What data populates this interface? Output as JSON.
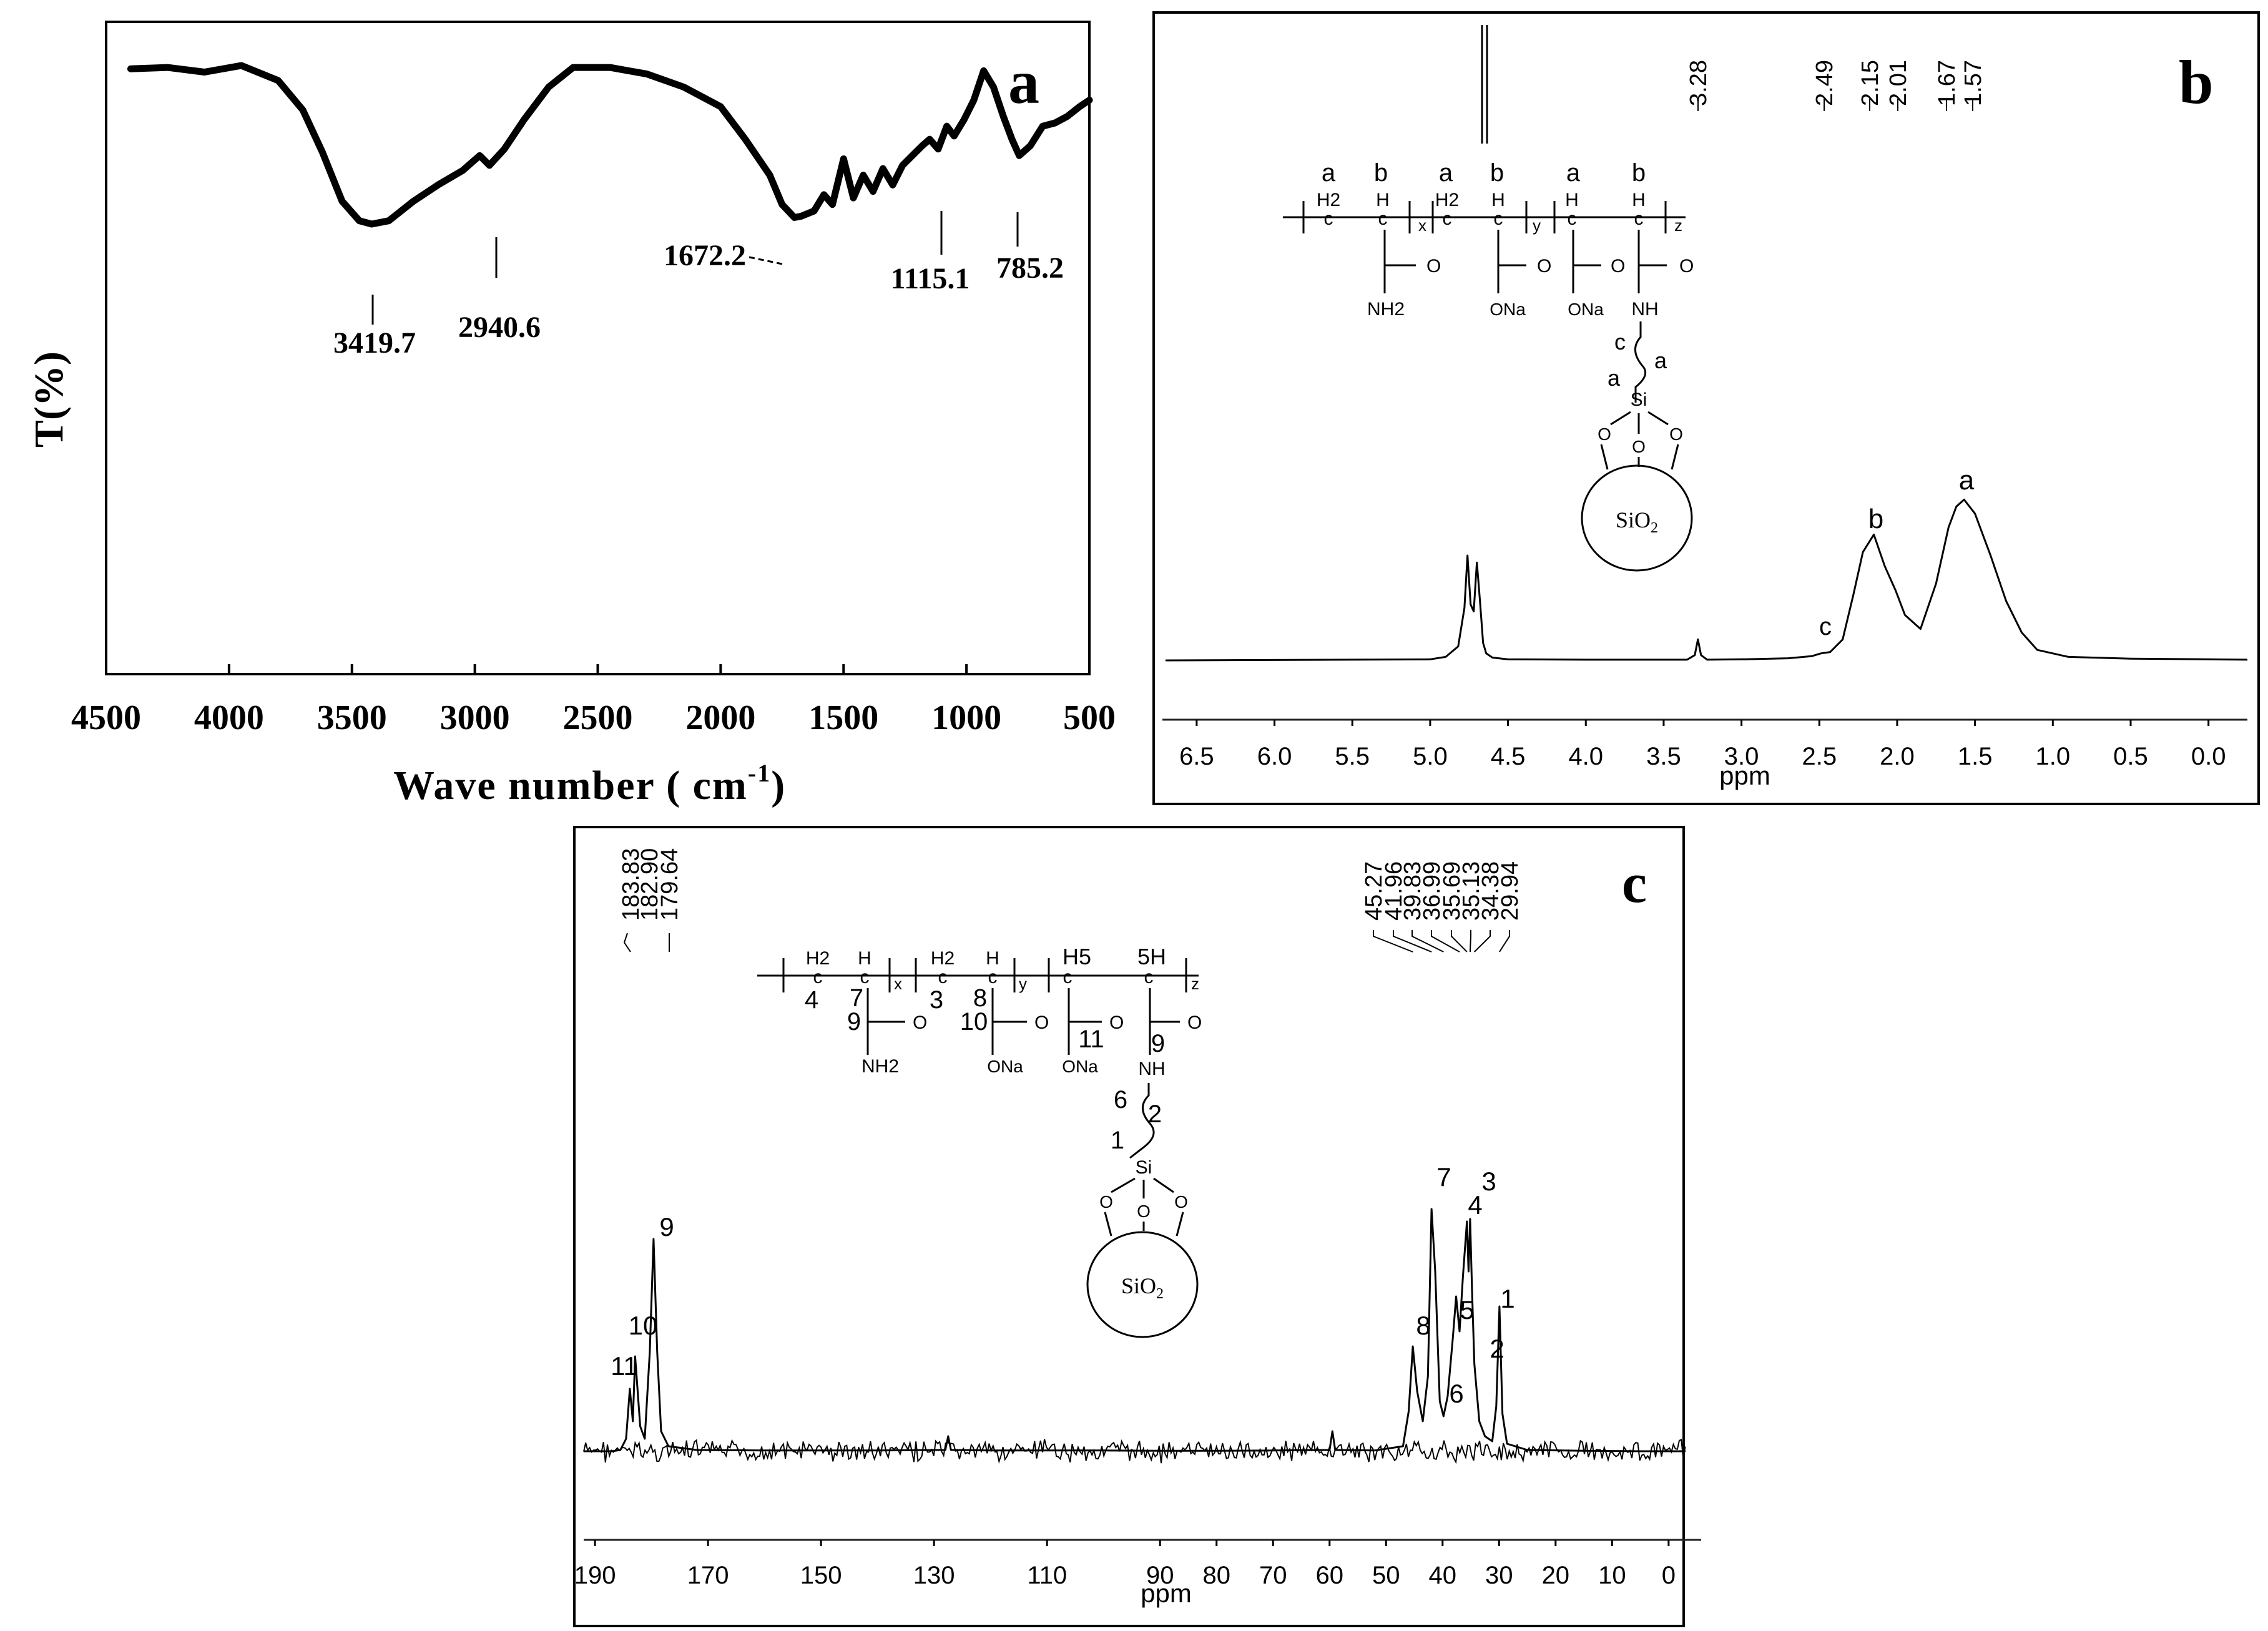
{
  "chart_data": [
    {
      "panel": "a",
      "type": "line",
      "xlabel": "Wave number",
      "xunit": "cm-1",
      "ylabel": "T(%)",
      "xlim": [
        4500,
        500
      ],
      "xticks": [
        4500,
        4000,
        3500,
        3000,
        2500,
        2000,
        1500,
        1000,
        500
      ],
      "peaks": [
        "3419.7",
        "2940.6",
        "1672.2",
        "1115.1",
        "785.2"
      ],
      "series": [
        {
          "x": [
            4400,
            4250,
            4100,
            3950,
            3800,
            3700,
            3620,
            3540,
            3470,
            3419.7,
            3350,
            3250,
            3150,
            3050,
            2980,
            2940.6,
            2880,
            2800,
            2700,
            2600,
            2450,
            2300,
            2150,
            2000,
            1900,
            1800,
            1750,
            1700,
            1672.2,
            1620,
            1580,
            1545,
            1500,
            1460,
            1420,
            1380,
            1340,
            1300,
            1260,
            1220,
            1180,
            1150,
            1115.1,
            1080,
            1050,
            1010,
            970,
            930,
            890,
            850,
            815,
            785.2,
            740,
            690,
            640,
            590,
            540,
            500
          ],
          "y": [
            92.8,
            93.0,
            92.3,
            93.3,
            91.0,
            86.5,
            80.0,
            72.5,
            69.5,
            69.0,
            69.5,
            72.5,
            75.0,
            77.2,
            79.5,
            78.0,
            80.5,
            85.0,
            90.0,
            93.0,
            93.0,
            92.0,
            90.0,
            87.0,
            82.0,
            76.5,
            72.0,
            70.0,
            70.2,
            71.0,
            73.5,
            72.0,
            79.0,
            73.0,
            76.5,
            74.0,
            77.5,
            75.0,
            78.0,
            79.5,
            81.0,
            82.0,
            80.5,
            84.0,
            82.5,
            85.0,
            88.0,
            92.5,
            90.0,
            85.5,
            82.0,
            79.5,
            81.0,
            84.0,
            84.5,
            85.5,
            87.0,
            88.0
          ]
        }
      ]
    },
    {
      "panel": "b",
      "type": "line",
      "xlabel": "ppm",
      "xlim": [
        6.7,
        -0.25
      ],
      "xticks": [
        "6.5",
        "6.0",
        "5.5",
        "5.0",
        "4.5",
        "4.0",
        "3.5",
        "3.0",
        "2.5",
        "2.0",
        "1.5",
        "1.0",
        "0.5",
        "0.0"
      ],
      "peak_labels": [
        "3.28",
        "2.49",
        "2.15",
        "2.01",
        "1.67",
        "1.57"
      ],
      "assignments": [
        {
          "label": "c",
          "ppm": 2.49
        },
        {
          "label": "b",
          "ppm": 2.15
        },
        {
          "label": "a",
          "ppm": 1.57
        }
      ],
      "series": [
        {
          "x": [
            6.7,
            5.0,
            4.9,
            4.82,
            4.78,
            4.76,
            4.74,
            4.72,
            4.7,
            4.68,
            4.66,
            4.64,
            4.6,
            4.5,
            4.0,
            3.35,
            3.3,
            3.28,
            3.26,
            3.22,
            3.0,
            2.7,
            2.55,
            2.49,
            2.43,
            2.35,
            2.28,
            2.22,
            2.15,
            2.08,
            2.01,
            1.95,
            1.85,
            1.75,
            1.67,
            1.62,
            1.57,
            1.5,
            1.4,
            1.3,
            1.2,
            1.1,
            0.9,
            0.5,
            0.0,
            -0.25
          ],
          "y": [
            0.0,
            0.3,
            1.0,
            4.0,
            15.0,
            30.0,
            16.0,
            14.0,
            28.0,
            17.0,
            5.0,
            2.0,
            0.8,
            0.3,
            0.2,
            0.2,
            1.5,
            6.0,
            1.5,
            0.2,
            0.3,
            0.6,
            1.2,
            2.0,
            2.4,
            6.0,
            19.0,
            31.0,
            36.0,
            27.0,
            20.0,
            13.0,
            9.0,
            22.0,
            38.0,
            44.0,
            46.0,
            42.0,
            30.0,
            17.0,
            8.0,
            3.0,
            1.0,
            0.5,
            0.3,
            0.2
          ]
        }
      ],
      "structure": {
        "top_labels": [
          "a",
          "b",
          "a",
          "b",
          "a",
          "b"
        ],
        "groups": [
          "H2",
          "H",
          "H2",
          "H",
          "H",
          "H"
        ],
        "subscripts": [
          "x",
          "y",
          "z"
        ],
        "substituents": [
          "NH2",
          "ONa",
          "ONa",
          "NH"
        ],
        "chain_labels": [
          "c",
          "a",
          "a"
        ],
        "si": "Si",
        "o": "O",
        "particle": "SiO2"
      }
    },
    {
      "panel": "c",
      "type": "line",
      "xlabel": "ppm",
      "xlim": [
        192,
        -3
      ],
      "xticks": [
        "190",
        "170",
        "150",
        "130",
        "110",
        "90",
        "80",
        "70",
        "60",
        "50",
        "40",
        "30",
        "20",
        "10",
        "0"
      ],
      "peak_labels_left": [
        "183.83",
        "182.90",
        "179.64"
      ],
      "peak_labels_right": [
        "45.27",
        "41.96",
        "39.83",
        "36.99",
        "35.69",
        "35.13",
        "34.38",
        "29.94"
      ],
      "assignments": [
        {
          "label": "11",
          "ppm": 183.83
        },
        {
          "label": "10",
          "ppm": 182.9
        },
        {
          "label": "9",
          "ppm": 179.64
        },
        {
          "label": "8",
          "ppm": 45.27
        },
        {
          "label": "7",
          "ppm": 41.96
        },
        {
          "label": "6",
          "ppm": 39.83
        },
        {
          "label": "5",
          "ppm": 36.99
        },
        {
          "label": "4",
          "ppm": 35.69
        },
        {
          "label": "3",
          "ppm": 35.13
        },
        {
          "label": "2",
          "ppm": 34.38
        },
        {
          "label": "1",
          "ppm": 29.94
        }
      ],
      "series": [
        {
          "x": [
            192,
            187,
            185.5,
            184.5,
            183.83,
            183.3,
            182.9,
            182.0,
            181.2,
            180.3,
            179.64,
            179.0,
            178.3,
            177.0,
            172,
            160,
            150,
            140,
            128,
            127.5,
            127,
            120,
            110,
            100,
            90,
            80,
            70,
            60,
            59.5,
            59,
            52,
            47,
            46,
            45.27,
            44.5,
            43.5,
            42.6,
            41.96,
            41.3,
            40.5,
            39.83,
            39.1,
            38.2,
            37.6,
            36.99,
            36.4,
            35.69,
            35.4,
            35.13,
            34.8,
            34.38,
            33.5,
            32.5,
            31.2,
            30.5,
            29.94,
            29.4,
            28.6,
            25,
            15,
            5,
            -3
          ],
          "y": [
            0.0,
            0.0,
            0.5,
            5.0,
            25.0,
            12.0,
            38.0,
            10.0,
            5.0,
            40.0,
            85.0,
            40.0,
            8.0,
            2.0,
            0.5,
            0.3,
            0.3,
            0.3,
            0.5,
            6.0,
            0.5,
            0.3,
            0.3,
            0.3,
            0.2,
            0.2,
            0.3,
            0.5,
            8.0,
            0.5,
            0.3,
            2.0,
            16.0,
            42.0,
            24.0,
            12.0,
            30.0,
            97.0,
            72.0,
            20.0,
            14.0,
            22.0,
            45.0,
            62.0,
            48.0,
            70.0,
            92.0,
            72.0,
            93.0,
            65.0,
            35.0,
            12.0,
            6.0,
            4.0,
            18.0,
            58.0,
            15.0,
            3.0,
            0.5,
            0.2,
            0.0,
            0.0
          ]
        }
      ],
      "structure": {
        "groups": [
          "H2",
          "H",
          "H2",
          "H",
          "H5",
          "5H"
        ],
        "subscripts": [
          "x",
          "y",
          "z"
        ],
        "carbon_numbers": [
          "4",
          "7",
          "3",
          "8"
        ],
        "carbonyl_numbers": [
          "9",
          "10",
          "11",
          "9"
        ],
        "substituents": [
          "NH2",
          "ONa",
          "ONa",
          "NH"
        ],
        "chain_labels": [
          "6",
          "2",
          "1"
        ],
        "si": "Si",
        "o": "O",
        "particle": "SiO2"
      }
    }
  ],
  "panel_labels": [
    "a",
    "b",
    "c"
  ]
}
